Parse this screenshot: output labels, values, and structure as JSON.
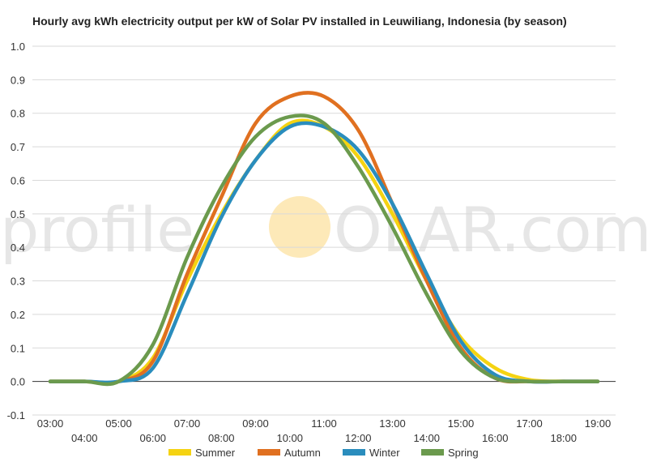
{
  "watermark": {
    "left": "profile",
    "right": "OLAR.com",
    "sun_color": "#fde9b8",
    "text_color": "#e6e6e6"
  },
  "chart_data": {
    "type": "line",
    "title": "Hourly avg kWh electricity output per kW of Solar PV installed in Leuwiliang, Indonesia (by season)",
    "xlabel": "",
    "ylabel": "",
    "ylim": [
      -0.1,
      1.0
    ],
    "yticks": [
      "1.0",
      "0.9",
      "0.8",
      "0.7",
      "0.6",
      "0.5",
      "0.4",
      "0.3",
      "0.2",
      "0.1",
      "0.0",
      "-0.1"
    ],
    "xtick_labels": [
      "03:00",
      "04:00",
      "05:00",
      "06:00",
      "07:00",
      "08:00",
      "09:00",
      "10:00",
      "11:00",
      "12:00",
      "13:00",
      "14:00",
      "15:00",
      "16:00",
      "17:00",
      "18:00",
      "19:00"
    ],
    "x": [
      3,
      4,
      5,
      6,
      7,
      8,
      9,
      10,
      11,
      12,
      13,
      14,
      15,
      16,
      17,
      18,
      19
    ],
    "grid": true,
    "legend_position": "bottom",
    "series": [
      {
        "name": "Summer",
        "color": "#f5d312",
        "values": [
          0,
          0,
          0,
          0.07,
          0.3,
          0.5,
          0.66,
          0.77,
          0.76,
          0.67,
          0.5,
          0.3,
          0.13,
          0.04,
          0.005,
          0,
          0
        ]
      },
      {
        "name": "Autumn",
        "color": "#e07020",
        "values": [
          0,
          0,
          0,
          0.06,
          0.32,
          0.55,
          0.77,
          0.85,
          0.85,
          0.75,
          0.53,
          0.3,
          0.1,
          0.01,
          0,
          0,
          0
        ]
      },
      {
        "name": "Winter",
        "color": "#2a8dbd",
        "values": [
          0,
          0,
          0,
          0.04,
          0.26,
          0.49,
          0.66,
          0.76,
          0.76,
          0.69,
          0.53,
          0.32,
          0.12,
          0.02,
          0,
          0,
          0
        ]
      },
      {
        "name": "Spring",
        "color": "#6b9a4d",
        "values": [
          0,
          0,
          0,
          0.11,
          0.37,
          0.58,
          0.73,
          0.79,
          0.77,
          0.64,
          0.46,
          0.26,
          0.09,
          0.01,
          0,
          0,
          0
        ]
      }
    ]
  }
}
